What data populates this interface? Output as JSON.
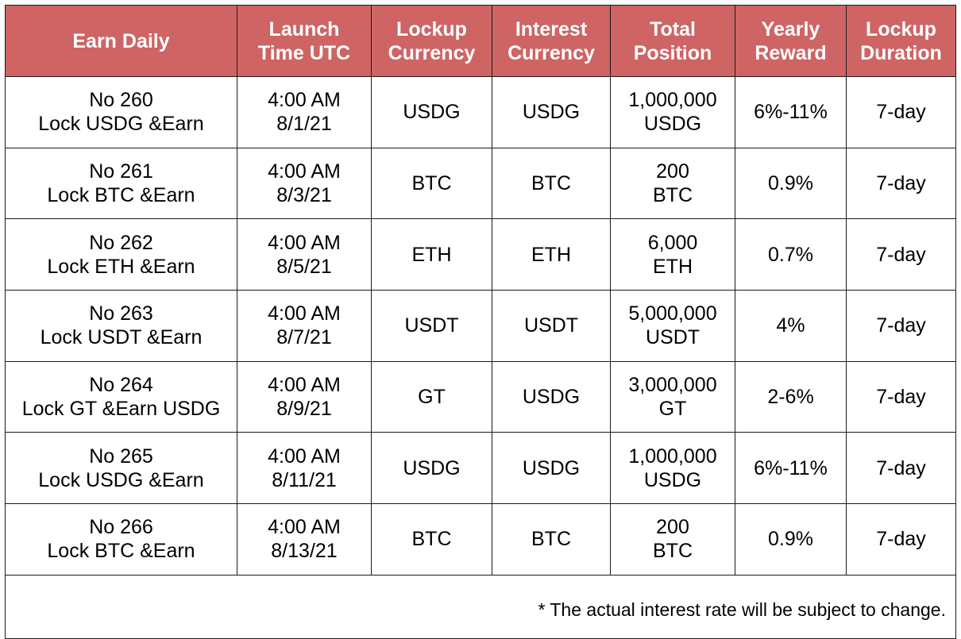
{
  "table": {
    "header_color": "#cf6464",
    "headers": [
      {
        "line1": "Earn Daily",
        "line2": ""
      },
      {
        "line1": "Launch",
        "line2": "Time UTC"
      },
      {
        "line1": "Lockup",
        "line2": "Currency"
      },
      {
        "line1": "Interest",
        "line2": "Currency"
      },
      {
        "line1": "Total",
        "line2": "Position"
      },
      {
        "line1": "Yearly",
        "line2": "Reward"
      },
      {
        "line1": "Lockup",
        "line2": "Duration"
      }
    ],
    "rows": [
      {
        "name_no": "No 260",
        "name_desc": "Lock USDG &Earn",
        "time": "4:00 AM",
        "date": "8/1/21",
        "lockup_currency": "USDG",
        "interest_currency": "USDG",
        "position_amount": "1,000,000",
        "position_unit": "USDG",
        "yearly_reward": "6%-11%",
        "duration": "7-day"
      },
      {
        "name_no": "No 261",
        "name_desc": "Lock BTC &Earn",
        "time": "4:00 AM",
        "date": "8/3/21",
        "lockup_currency": "BTC",
        "interest_currency": "BTC",
        "position_amount": "200",
        "position_unit": "BTC",
        "yearly_reward": "0.9%",
        "duration": "7-day"
      },
      {
        "name_no": "No 262",
        "name_desc": "Lock ETH &Earn",
        "time": "4:00 AM",
        "date": "8/5/21",
        "lockup_currency": "ETH",
        "interest_currency": "ETH",
        "position_amount": "6,000",
        "position_unit": "ETH",
        "yearly_reward": "0.7%",
        "duration": "7-day"
      },
      {
        "name_no": "No 263",
        "name_desc": "Lock USDT &Earn",
        "time": "4:00 AM",
        "date": "8/7/21",
        "lockup_currency": "USDT",
        "interest_currency": "USDT",
        "position_amount": "5,000,000",
        "position_unit": "USDT",
        "yearly_reward": "4%",
        "duration": "7-day"
      },
      {
        "name_no": "No 264",
        "name_desc": "Lock GT &Earn USDG",
        "time": "4:00 AM",
        "date": "8/9/21",
        "lockup_currency": "GT",
        "interest_currency": "USDG",
        "position_amount": "3,000,000",
        "position_unit": "GT",
        "yearly_reward": "2-6%",
        "duration": "7-day"
      },
      {
        "name_no": "No 265",
        "name_desc": "Lock USDG &Earn",
        "time": "4:00 AM",
        "date": "8/11/21",
        "lockup_currency": "USDG",
        "interest_currency": "USDG",
        "position_amount": "1,000,000",
        "position_unit": "USDG",
        "yearly_reward": "6%-11%",
        "duration": "7-day"
      },
      {
        "name_no": "No 266",
        "name_desc": "Lock BTC &Earn",
        "time": "4:00 AM",
        "date": "8/13/21",
        "lockup_currency": "BTC",
        "interest_currency": "BTC",
        "position_amount": "200",
        "position_unit": "BTC",
        "yearly_reward": "0.9%",
        "duration": "7-day"
      }
    ],
    "footnote": "* The actual interest rate will be subject to change."
  }
}
